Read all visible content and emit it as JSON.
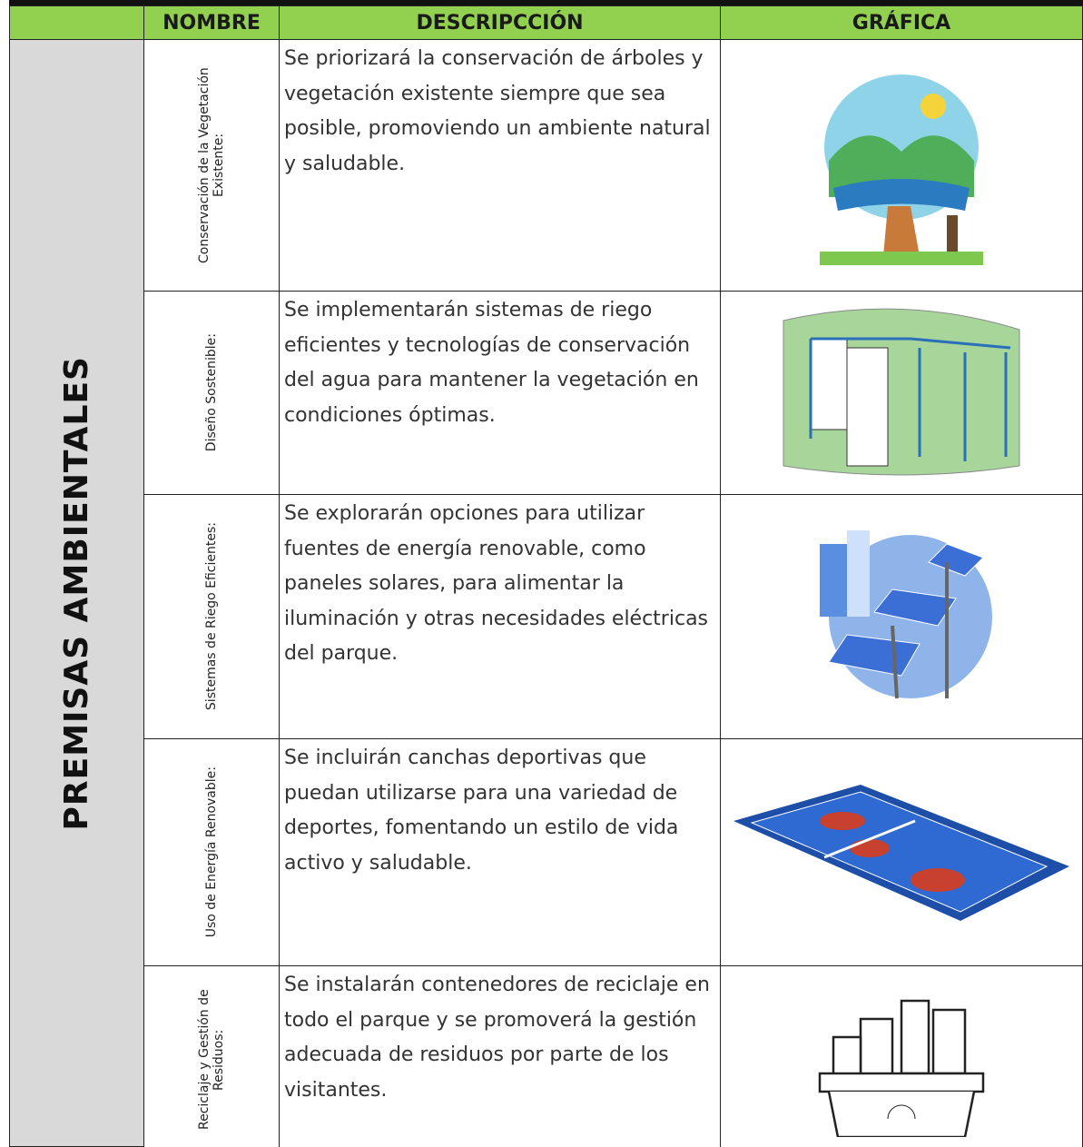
{
  "header": {
    "columns": [
      "NOMBRE",
      "DESCRIPCCIÓN",
      "GRÁFICA"
    ]
  },
  "table": {
    "section": "PREMISAS AMBIENTALES",
    "rows": [
      {
        "name": "Conservación de la Vegetación Existente:",
        "description": "Se priorizará la conservación de árboles y vegetación existente siempre que sea posible, promoviendo un ambiente natural y saludable."
      },
      {
        "name": "Diseño Sostenible:",
        "description": "Se implementarán sistemas de riego eficientes y tecnologías de conservación del agua para mantener la vegetación en condiciones óptimas."
      },
      {
        "name": "Sistemas de Riego Eficientes:",
        "description": "Se explorarán opciones para utilizar fuentes de energía renovable, como paneles solares, para alimentar la iluminación y otras necesidades eléctricas del parque."
      },
      {
        "name": "Uso de Energía Renovable:",
        "description": "Se incluirán canchas deportivas que puedan utilizarse para una variedad de deportes, fomentando un estilo de vida activo y saludable."
      },
      {
        "name": "Reciclaje y Gestión de Residuos:",
        "description": "Se instalarán contenedores de reciclaje en todo el parque y se promoverá la gestión adecuada de residuos por parte de los visitantes."
      }
    ]
  }
}
